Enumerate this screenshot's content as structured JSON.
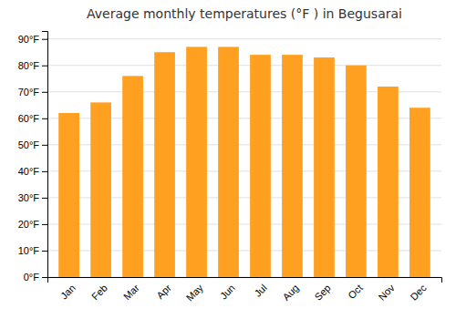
{
  "chart_data": {
    "type": "bar",
    "title": "Average monthly temperatures (°F ) in Begusarai",
    "categories": [
      "Jan",
      "Feb",
      "Mar",
      "Apr",
      "May",
      "Jun",
      "Jul",
      "Aug",
      "Sep",
      "Oct",
      "Nov",
      "Dec"
    ],
    "values": [
      62,
      66,
      76,
      85,
      87,
      87,
      84,
      84,
      83,
      80,
      72,
      64
    ],
    "color": "#FFA020",
    "ylim": [
      0,
      93
    ],
    "yticks": [
      {
        "value": 0,
        "label": "0°F"
      },
      {
        "value": 10,
        "label": "10°F"
      },
      {
        "value": 20,
        "label": "20°F"
      },
      {
        "value": 30,
        "label": "30°F"
      },
      {
        "value": 40,
        "label": "40°F"
      },
      {
        "value": 50,
        "label": "50°F"
      },
      {
        "value": 60,
        "label": "60°F"
      },
      {
        "value": 70,
        "label": "70°F"
      },
      {
        "value": 80,
        "label": "80°F"
      },
      {
        "value": 90,
        "label": "90°F"
      }
    ],
    "grid": true
  }
}
